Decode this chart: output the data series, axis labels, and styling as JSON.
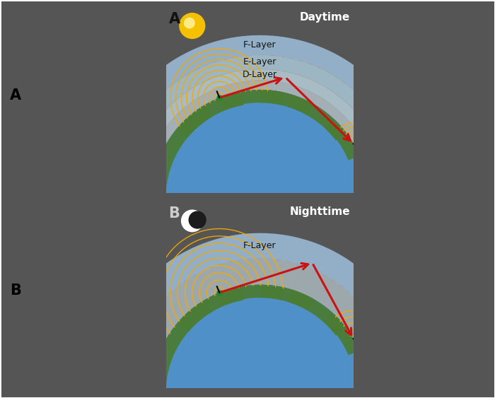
{
  "bg_day": "#7a7a7a",
  "bg_night": "#1c1c1c",
  "panel_border": "#444444",
  "earth_ocean": "#5090c8",
  "earth_land": "#4a7c35",
  "wave_color": "#f5a800",
  "arrow_color": "#cc1111",
  "tx_color": "#228B22",
  "label_day": "Daytime",
  "label_night": "Nighttime",
  "label_A": "A",
  "label_B": "B",
  "layer_f": "F-Layer",
  "layer_e": "E-Layer",
  "layer_d": "D-Layer",
  "f_band_color": "#9bbcd8",
  "e_band_color": "#b0cfdf",
  "d_band_color": "#c5e0eb",
  "inner_color": "#d8edf5",
  "dash_color": "#aaaaaa",
  "sun_color": "#f5c000",
  "sun_center": "#ffffa0"
}
